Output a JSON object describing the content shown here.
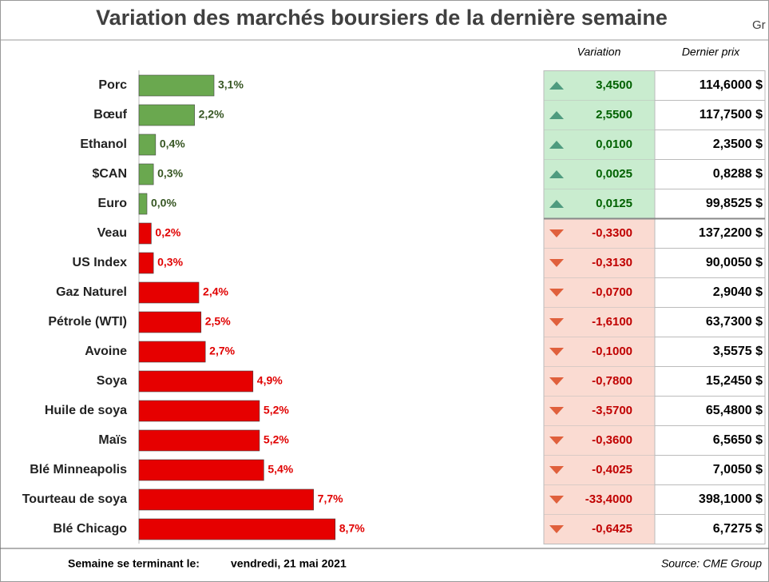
{
  "chart_data": {
    "type": "bar",
    "orientation": "horizontal",
    "title": "Variation des marchés boursiers de la dernière semaine",
    "categories": [
      "Porc",
      "Bœuf",
      "Ethanol",
      "$CAN",
      "Euro",
      "Veau",
      "US Index",
      "Gaz Naturel",
      "Pétrole (WTI)",
      "Avoine",
      "Soya",
      "Huile de soya",
      "Maïs",
      "Blé Minneapolis",
      "Tourteau de soya",
      "Blé Chicago"
    ],
    "values": [
      3.1,
      2.2,
      0.4,
      0.3,
      0.0,
      0.2,
      0.3,
      2.4,
      2.5,
      2.7,
      4.9,
      5.2,
      5.2,
      5.4,
      7.7,
      8.7
    ],
    "value_labels": [
      "3,1%",
      "2,2%",
      "0,4%",
      "0,3%",
      "0,0%",
      "0,2%",
      "0,3%",
      "2,4%",
      "2,5%",
      "2,7%",
      "4,9%",
      "5,2%",
      "5,2%",
      "5,4%",
      "7,7%",
      "8,7%"
    ],
    "colors": [
      "#6aa84f",
      "#6aa84f",
      "#6aa84f",
      "#6aa84f",
      "#6aa84f",
      "#e60000",
      "#e60000",
      "#e60000",
      "#e60000",
      "#e60000",
      "#e60000",
      "#e60000",
      "#e60000",
      "#e60000",
      "#e60000",
      "#e60000"
    ],
    "xlim": [
      0,
      10
    ]
  },
  "table": {
    "headers": [
      "Variation",
      "Dernier prix"
    ],
    "rows": [
      [
        "3,4500",
        "114,6000 $"
      ],
      [
        "2,5500",
        "117,7500 $"
      ],
      [
        "0,0100",
        "2,3500 $"
      ],
      [
        "0,0025",
        "0,8288 $"
      ],
      [
        "0,0125",
        "99,8525 $"
      ],
      [
        "-0,3300",
        "137,2200 $"
      ],
      [
        "-0,3130",
        "90,0050 $"
      ],
      [
        "-0,0700",
        "2,9040 $"
      ],
      [
        "-1,6100",
        "63,7300 $"
      ],
      [
        "-0,1000",
        "3,5575 $"
      ],
      [
        "-0,7800",
        "15,2450 $"
      ],
      [
        "-3,5700",
        "65,4800 $"
      ],
      [
        "-0,3600",
        "6,5650 $"
      ],
      [
        "-0,4025",
        "7,0050 $"
      ],
      [
        "-33,4000",
        "398,1000 $"
      ],
      [
        "-0,6425",
        "6,7275 $"
      ]
    ]
  },
  "footer": {
    "label": "Semaine se terminant le:",
    "date": "vendredi, 21 mai 2021",
    "source": "Source: CME Group"
  },
  "corner_label": "Gr"
}
